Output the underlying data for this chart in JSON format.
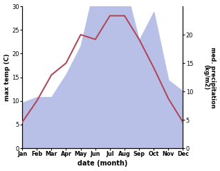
{
  "months": [
    "Jan",
    "Feb",
    "Mar",
    "Apr",
    "May",
    "Jun",
    "Jul",
    "Aug",
    "Sep",
    "Oct",
    "Nov",
    "Dec"
  ],
  "temp": [
    5.5,
    10,
    15.5,
    18,
    24,
    23,
    28,
    28,
    23,
    17,
    10.5,
    5.5
  ],
  "precip": [
    8,
    9,
    9,
    13,
    18,
    29,
    30,
    29,
    19,
    24,
    12,
    10
  ],
  "temp_color": "#b04858",
  "precip_fill_color": "#b8c0e8",
  "ylabel_left": "max temp (C)",
  "ylabel_right": "med. precipitation\n(kg/m2)",
  "xlabel": "date (month)",
  "ylim_left": [
    0,
    30
  ],
  "ylim_right": [
    0,
    25
  ],
  "left_ticks": [
    0,
    5,
    10,
    15,
    20,
    25,
    30
  ],
  "right_ticks": [
    0,
    5,
    10,
    15,
    20
  ],
  "bg_color": "#ffffff"
}
